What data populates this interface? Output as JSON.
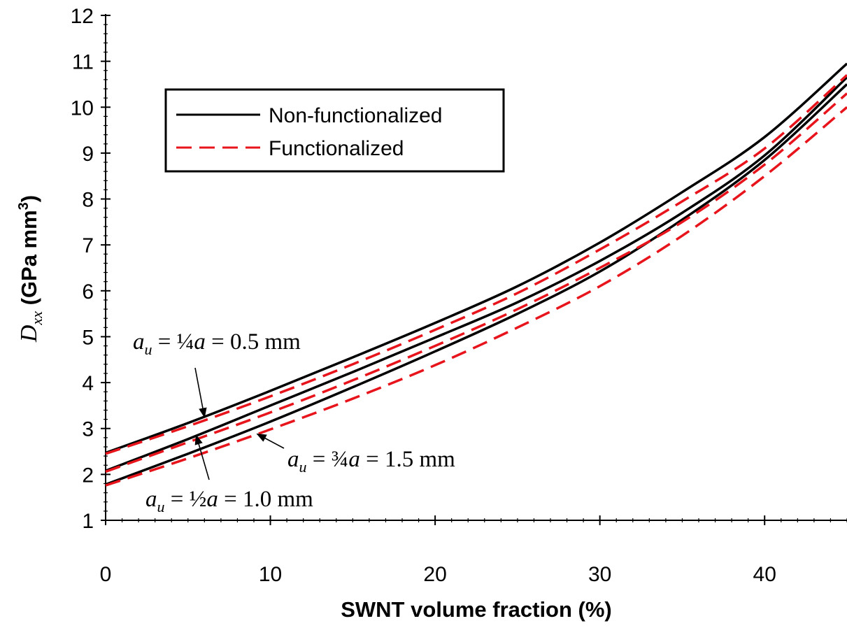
{
  "chart_data": {
    "type": "line",
    "xlabel": "SWNT volume fraction (%)",
    "ylabel": {
      "symbol": "D",
      "subscript": "xx",
      "units_pre": " (GPa mm",
      "units_sup": "3",
      "units_post": ")"
    },
    "xlim": [
      0,
      45
    ],
    "ylim": [
      1,
      12
    ],
    "xticks": [
      0,
      10,
      20,
      30,
      40
    ],
    "yticks": [
      1,
      2,
      3,
      4,
      5,
      6,
      7,
      8,
      9,
      10,
      11,
      12
    ],
    "grid": false,
    "legend": {
      "position": "top-left",
      "entries": [
        {
          "label": "Non-functionalized",
          "color": "#000000",
          "style": "solid"
        },
        {
          "label": "Functionalized",
          "color": "#e8141c",
          "style": "dashed"
        }
      ]
    },
    "x": [
      0,
      5,
      10,
      15,
      20,
      25,
      30,
      35,
      40,
      45
    ],
    "series": [
      {
        "group": "Non-functionalized",
        "case": "a_u = 1/4 a = 0.5 mm",
        "values": [
          2.47,
          3.12,
          3.82,
          4.55,
          5.3,
          6.1,
          7.05,
          8.15,
          9.35,
          10.95
        ]
      },
      {
        "group": "Non-functionalized",
        "case": "a_u = 1/2 a = 1.0 mm",
        "values": [
          2.08,
          2.77,
          3.5,
          4.23,
          4.98,
          5.75,
          6.65,
          7.7,
          8.95,
          10.65
        ]
      },
      {
        "group": "Non-functionalized",
        "case": "a_u = 3/4 a = 1.5 mm",
        "values": [
          1.78,
          2.45,
          3.15,
          3.9,
          4.68,
          5.5,
          6.42,
          7.55,
          8.85,
          10.5
        ]
      },
      {
        "group": "Functionalized",
        "case": "a_u = 1/4 a = 0.5 mm",
        "values": [
          2.45,
          3.05,
          3.7,
          4.4,
          5.15,
          5.95,
          6.9,
          7.95,
          9.1,
          10.7
        ]
      },
      {
        "group": "Functionalized",
        "case": "a_u = 1/2 a = 1.0 mm",
        "values": [
          2.06,
          2.7,
          3.35,
          4.05,
          4.8,
          5.6,
          6.5,
          7.5,
          8.75,
          10.3
        ]
      },
      {
        "group": "Functionalized",
        "case": "a_u = 3/4 a = 1.5 mm",
        "values": [
          1.76,
          2.35,
          2.98,
          3.65,
          4.38,
          5.2,
          6.1,
          7.2,
          8.5,
          10.0
        ]
      }
    ],
    "annotations": [
      {
        "a": "a",
        "u": "u",
        "eq": " = ¼",
        "a2": "a",
        "rest": " = 0.5 mm",
        "target": [
          6,
          3.25
        ]
      },
      {
        "a": "a",
        "u": "u",
        "eq": " = ½",
        "a2": "a",
        "rest": " = 1.0 mm",
        "target": [
          5.5,
          2.85
        ]
      },
      {
        "a": "a",
        "u": "u",
        "eq": " = ¾",
        "a2": "a",
        "rest": " = 1.5 mm",
        "target": [
          9.2,
          2.88
        ]
      }
    ]
  }
}
